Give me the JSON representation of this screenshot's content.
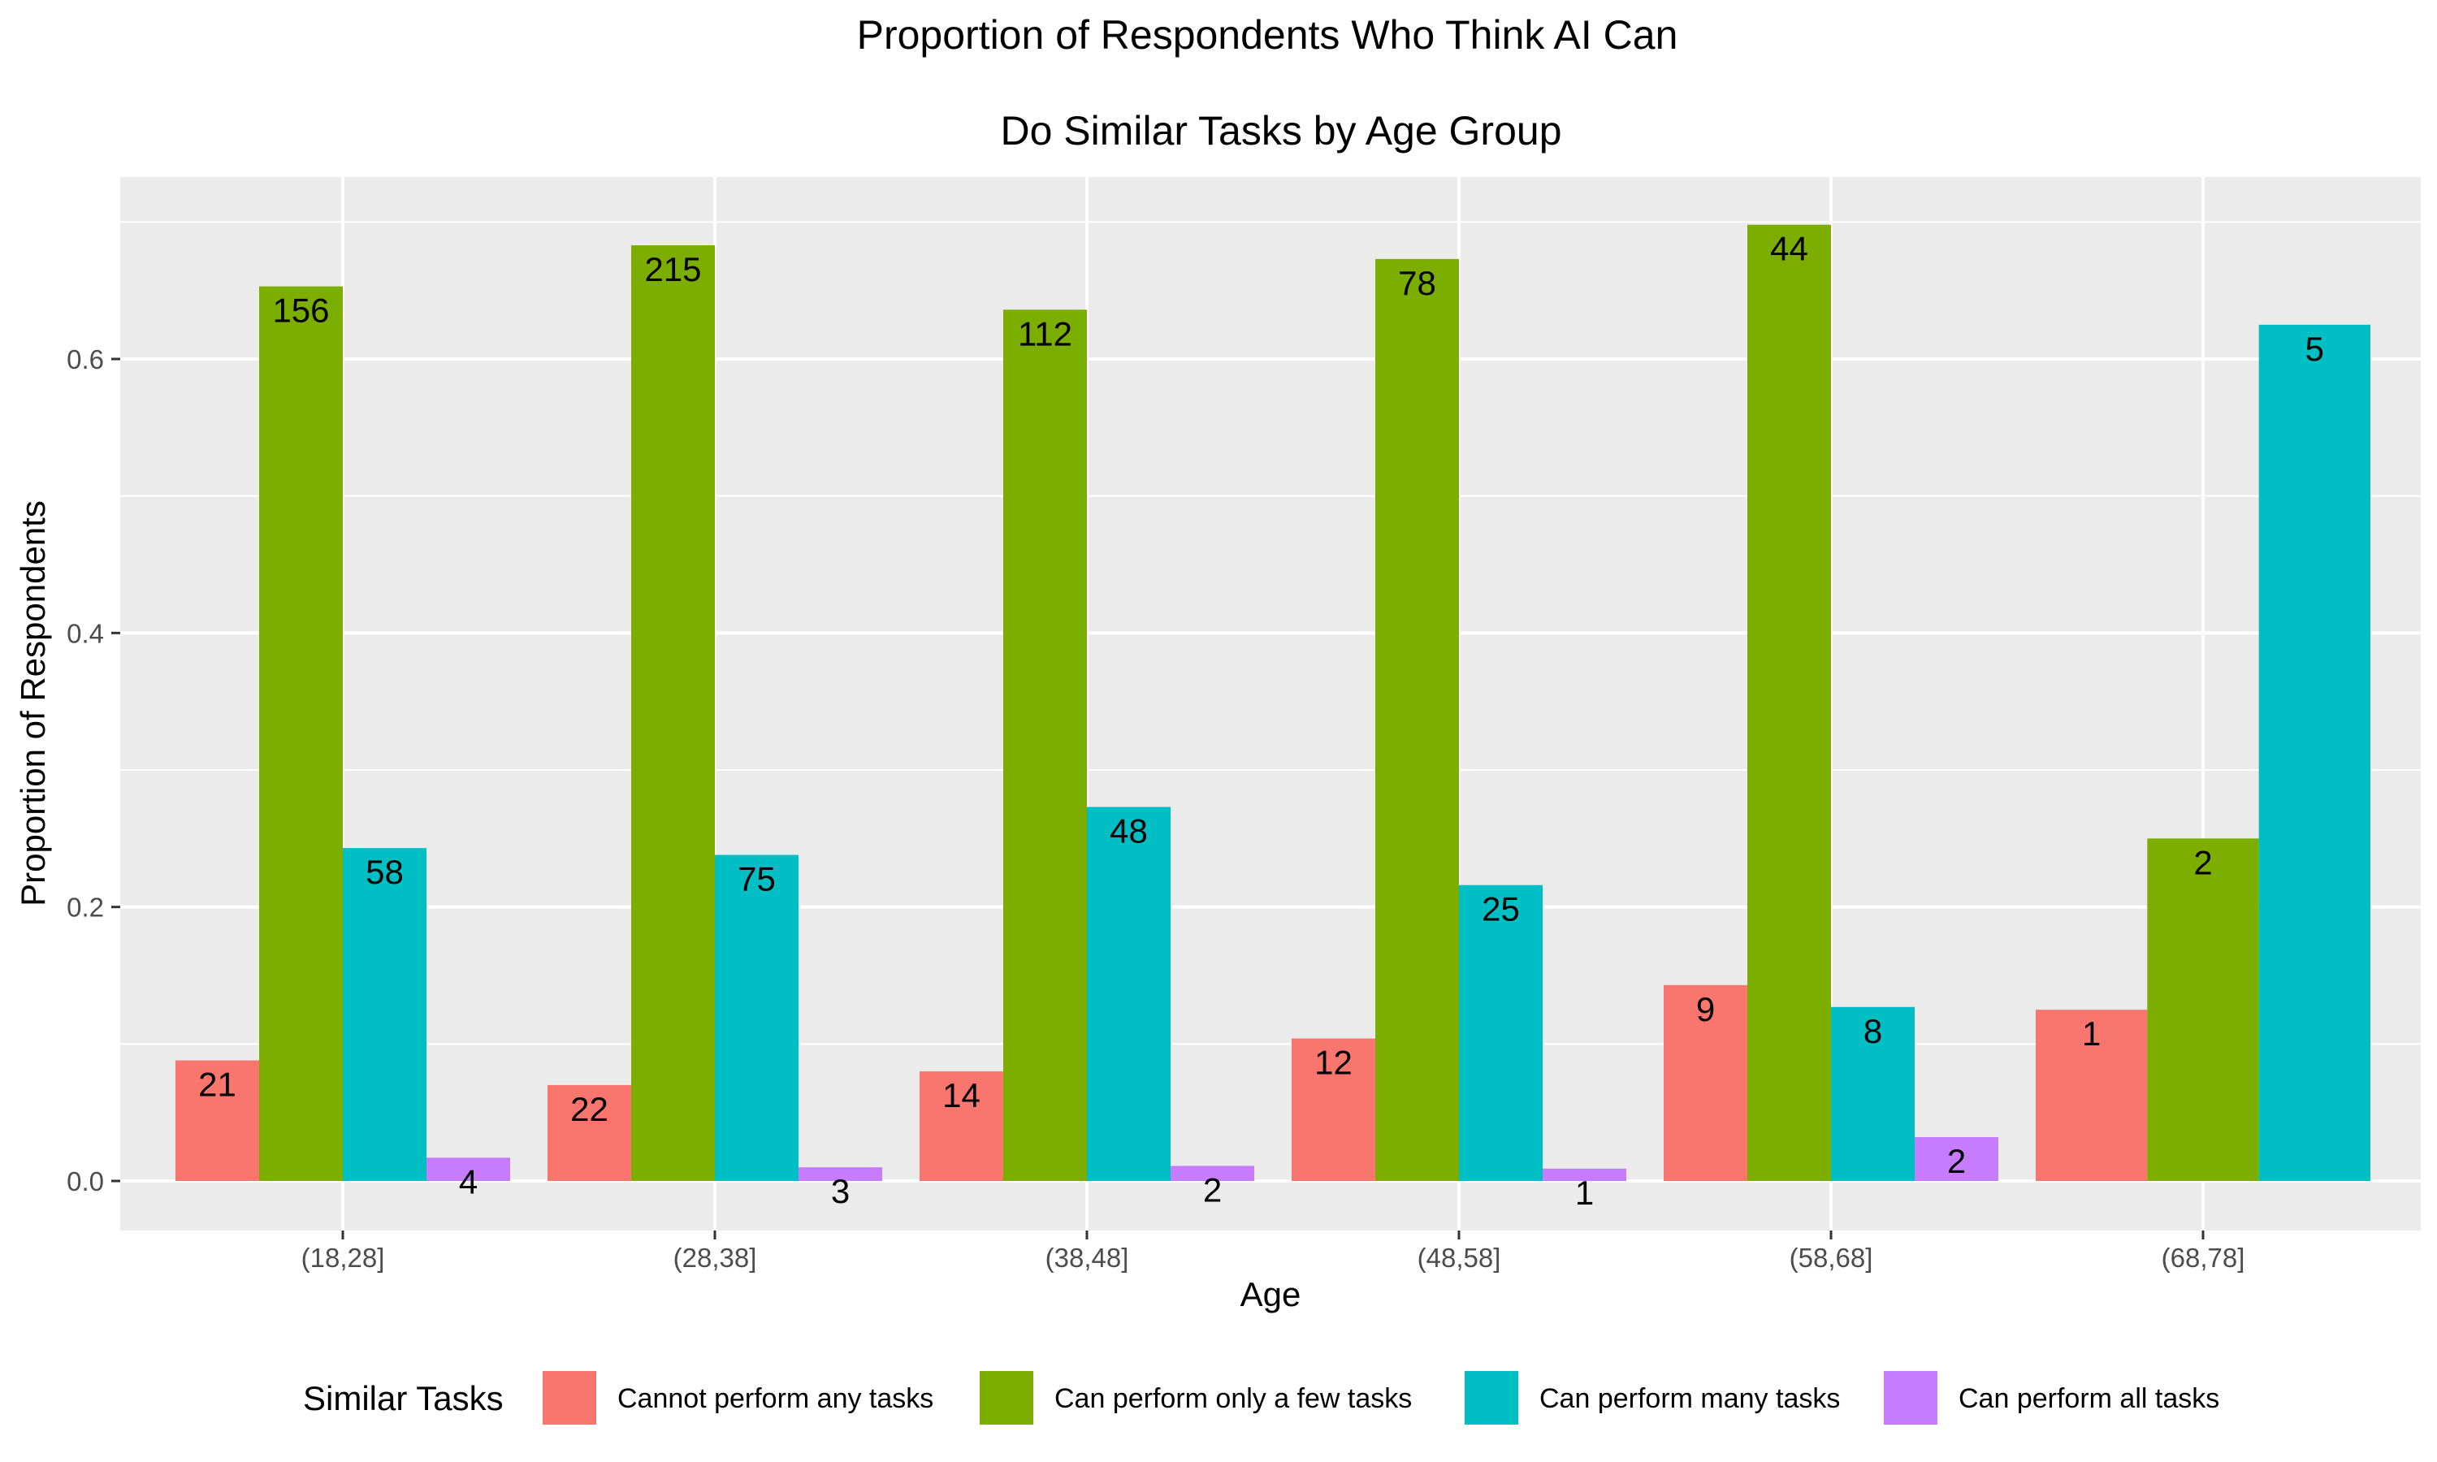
{
  "chart_data": {
    "type": "bar",
    "title_lines": [
      "Proportion of Respondents Who Think AI Can",
      "Do Similar Tasks by Age Group"
    ],
    "xlabel": "Age",
    "ylabel": "Proportion of Respondents",
    "ylim": [
      -0.035,
      0.72
    ],
    "yticks": [
      0.0,
      0.2,
      0.4,
      0.6
    ],
    "ytick_labels": [
      "0.0",
      "0.2",
      "0.4",
      "0.6"
    ],
    "grid": true,
    "legend_position": "bottom",
    "legend_title": "Similar Tasks",
    "categories": [
      "(18,28]",
      "(28,38]",
      "(38,48]",
      "(48,58]",
      "(58,68]",
      "(68,78]"
    ],
    "series": [
      {
        "name": "Cannot perform any tasks",
        "color": "#F8766D",
        "values": [
          0.088,
          0.07,
          0.08,
          0.104,
          0.143,
          0.125
        ],
        "counts": [
          "21",
          "22",
          "14",
          "12",
          "9",
          "1"
        ]
      },
      {
        "name": "Can perform only a few tasks",
        "color": "#7CAE00",
        "values": [
          0.653,
          0.683,
          0.636,
          0.673,
          0.698,
          0.25
        ],
        "counts": [
          "156",
          "215",
          "112",
          "78",
          "44",
          "2"
        ]
      },
      {
        "name": "Can perform many tasks",
        "color": "#00BFC4",
        "values": [
          0.243,
          0.238,
          0.273,
          0.216,
          0.127,
          0.625
        ],
        "counts": [
          "58",
          "75",
          "48",
          "25",
          "8",
          "5"
        ]
      },
      {
        "name": "Can perform all tasks",
        "color": "#C77CFF",
        "values": [
          0.017,
          0.01,
          0.011,
          0.009,
          0.032,
          null
        ],
        "counts": [
          "4",
          "3",
          "2",
          "1",
          "2",
          null
        ]
      }
    ]
  }
}
